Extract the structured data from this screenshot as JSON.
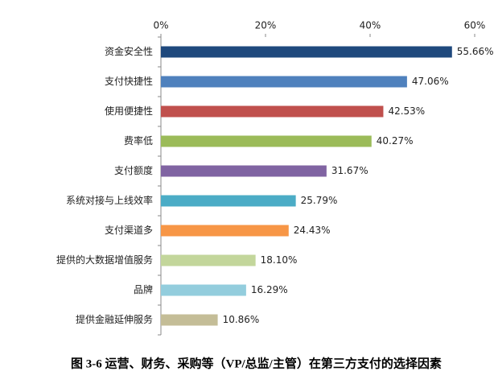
{
  "chart_data": {
    "type": "barh",
    "title": "图 3-6 运营、财务、采购等（VP/总监/主管）在第三方支付的选择因素",
    "categories": [
      "资金安全性",
      "支付快捷性",
      "使用便捷性",
      "费率低",
      "支付额度",
      "系统对接与上线效率",
      "支付渠道多",
      "提供的大数据增值服务",
      "品牌",
      "提供金融延伸服务"
    ],
    "values": [
      55.66,
      47.06,
      42.53,
      40.27,
      31.67,
      25.79,
      24.43,
      18.1,
      16.29,
      10.86
    ],
    "value_labels": [
      "55.66%",
      "47.06%",
      "42.53%",
      "40.27%",
      "31.67%",
      "25.79%",
      "24.43%",
      "18.10%",
      "16.29%",
      "10.86%"
    ],
    "colors": [
      "#1f497d",
      "#4f81bd",
      "#c0504d",
      "#9bbb59",
      "#8064a2",
      "#4bacc6",
      "#f79646",
      "#c3d69b",
      "#93cddd",
      "#c4bd97"
    ],
    "xlim": [
      0,
      60
    ],
    "xticks": [
      {
        "value": 0,
        "label": "0%"
      },
      {
        "value": 20,
        "label": "20%"
      },
      {
        "value": 40,
        "label": "40%"
      },
      {
        "value": 60,
        "label": "60%"
      }
    ],
    "grid": false
  }
}
